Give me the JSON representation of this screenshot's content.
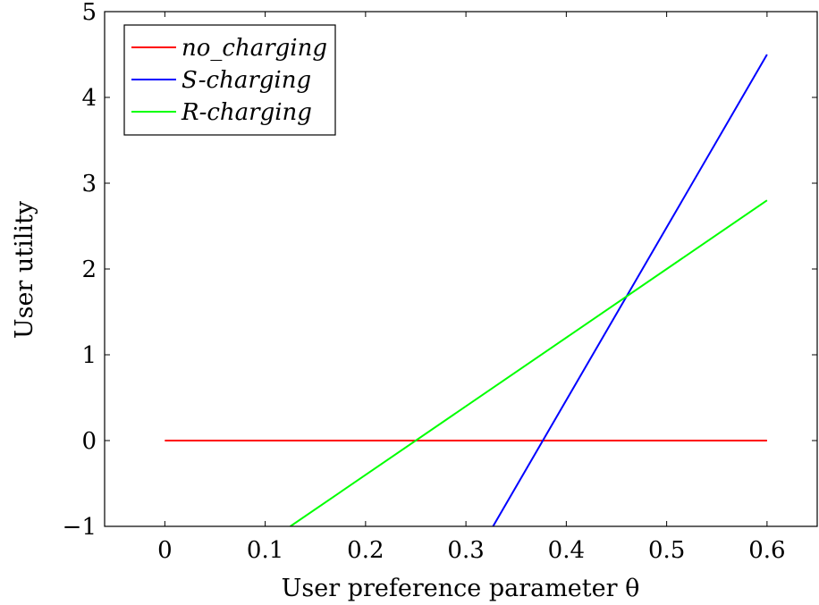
{
  "chart_data": {
    "type": "line",
    "title": "",
    "xlabel": "User preference parameter θ",
    "ylabel": "User utility",
    "xlim": [
      -0.06,
      0.65
    ],
    "ylim": [
      -1,
      5
    ],
    "xticks": [
      0,
      0.1,
      0.2,
      0.3,
      0.4,
      0.5,
      0.6
    ],
    "xtick_labels": [
      "0",
      "0.1",
      "0.2",
      "0.3",
      "0.4",
      "0.5",
      "0.6"
    ],
    "yticks": [
      -1,
      0,
      1,
      2,
      3,
      4,
      5
    ],
    "ytick_labels": [
      "−1",
      "0",
      "1",
      "2",
      "3",
      "4",
      "5"
    ],
    "grid": false,
    "legend_position": "top-left",
    "series": [
      {
        "name": "no_charging",
        "color": "#ff0000",
        "x": [
          0,
          0.6
        ],
        "y": [
          0,
          0
        ]
      },
      {
        "name": "S-charging",
        "color": "#0000ff",
        "x": [
          0.327,
          0.6
        ],
        "y": [
          -1,
          4.5
        ]
      },
      {
        "name": "R-charging",
        "color": "#00ff00",
        "x": [
          0.125,
          0.6
        ],
        "y": [
          -1,
          2.8
        ]
      }
    ]
  }
}
